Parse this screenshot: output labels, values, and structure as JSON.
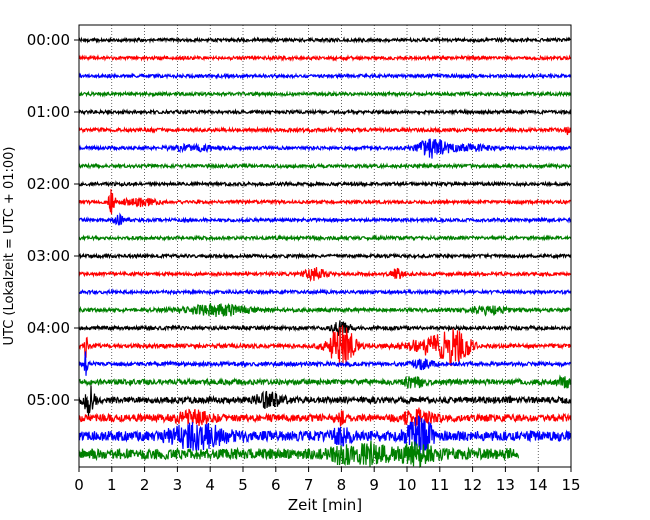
{
  "chart_data": {
    "type": "line",
    "xlabel": "Zeit  [min]",
    "ylabel": "UTC (Lokalzeit = UTC + 01:00)",
    "xlim": [
      0,
      15
    ],
    "x_ticks": [
      "0",
      "1",
      "2",
      "3",
      "4",
      "5",
      "6",
      "7",
      "8",
      "9",
      "10",
      "11",
      "12",
      "13",
      "14",
      "15"
    ],
    "y_ticks": [
      "00:00",
      "01:00",
      "02:00",
      "03:00",
      "04:00",
      "05:00"
    ],
    "grid": "vertical dotted",
    "trace_interval_min": 15,
    "trace_colors": [
      "#000000",
      "#ff0000",
      "#0000ff",
      "#008000"
    ],
    "traces": [
      {
        "start": "00:00",
        "end_min": 15,
        "amp": 0.18,
        "events": []
      },
      {
        "start": "00:15",
        "end_min": 15,
        "amp": 0.18,
        "events": []
      },
      {
        "start": "00:30",
        "end_min": 15,
        "amp": 0.18,
        "events": []
      },
      {
        "start": "00:45",
        "end_min": 15,
        "amp": 0.18,
        "events": []
      },
      {
        "start": "01:00",
        "end_min": 15,
        "amp": 0.18,
        "events": []
      },
      {
        "start": "01:15",
        "end_min": 15,
        "amp": 0.2,
        "events": [
          {
            "t": 14.9,
            "w": 0.05,
            "a": 0.6
          }
        ]
      },
      {
        "start": "01:30",
        "end_min": 15,
        "amp": 0.18,
        "events": [
          {
            "t": 3.5,
            "w": 0.7,
            "a": 0.3
          },
          {
            "t": 10.8,
            "w": 0.5,
            "a": 1.0
          },
          {
            "t": 12,
            "w": 0.6,
            "a": 0.3
          }
        ]
      },
      {
        "start": "01:45",
        "end_min": 15,
        "amp": 0.18,
        "events": []
      },
      {
        "start": "02:00",
        "end_min": 15,
        "amp": 0.18,
        "events": []
      },
      {
        "start": "02:15",
        "end_min": 15,
        "amp": 0.18,
        "events": [
          {
            "t": 1.0,
            "w": 0.1,
            "a": 1.3
          },
          {
            "t": 1.8,
            "w": 0.5,
            "a": 0.4
          }
        ]
      },
      {
        "start": "02:30",
        "end_min": 15,
        "amp": 0.18,
        "events": [
          {
            "t": 1.2,
            "w": 0.15,
            "a": 0.5
          }
        ]
      },
      {
        "start": "02:45",
        "end_min": 15,
        "amp": 0.18,
        "events": []
      },
      {
        "start": "03:00",
        "end_min": 15,
        "amp": 0.18,
        "events": []
      },
      {
        "start": "03:15",
        "end_min": 15,
        "amp": 0.18,
        "events": [
          {
            "t": 7.2,
            "w": 0.3,
            "a": 0.7
          },
          {
            "t": 9.7,
            "w": 0.2,
            "a": 0.5
          }
        ]
      },
      {
        "start": "03:30",
        "end_min": 15,
        "amp": 0.18,
        "events": []
      },
      {
        "start": "03:45",
        "end_min": 15,
        "amp": 0.2,
        "events": [
          {
            "t": 4.2,
            "w": 1.0,
            "a": 0.6
          },
          {
            "t": 12.5,
            "w": 0.5,
            "a": 0.4
          }
        ]
      },
      {
        "start": "04:00",
        "end_min": 15,
        "amp": 0.2,
        "events": [
          {
            "t": 8.0,
            "w": 0.25,
            "a": 0.8
          }
        ]
      },
      {
        "start": "04:15",
        "end_min": 15,
        "amp": 0.22,
        "events": [
          {
            "t": 8.0,
            "w": 0.4,
            "a": 2.2
          },
          {
            "t": 10.8,
            "w": 0.8,
            "a": 0.9
          },
          {
            "t": 11.5,
            "w": 0.4,
            "a": 1.7
          },
          {
            "t": 0.2,
            "w": 0.05,
            "a": 1.5
          }
        ]
      },
      {
        "start": "04:30",
        "end_min": 15,
        "amp": 0.22,
        "events": [
          {
            "t": 0.2,
            "w": 0.05,
            "a": 1.5
          },
          {
            "t": 10.5,
            "w": 0.3,
            "a": 0.5
          }
        ]
      },
      {
        "start": "04:45",
        "end_min": 15,
        "amp": 0.3,
        "events": [
          {
            "t": 10.2,
            "w": 0.3,
            "a": 0.6
          },
          {
            "t": 14.8,
            "w": 0.2,
            "a": 0.5
          }
        ]
      },
      {
        "start": "05:00",
        "end_min": 15,
        "amp": 0.35,
        "events": [
          {
            "t": 0.3,
            "w": 0.15,
            "a": 1.8
          },
          {
            "t": 5.8,
            "w": 0.4,
            "a": 0.7
          }
        ]
      },
      {
        "start": "05:15",
        "end_min": 15,
        "amp": 0.4,
        "events": [
          {
            "t": 3.5,
            "w": 0.5,
            "a": 0.6
          },
          {
            "t": 10.3,
            "w": 0.4,
            "a": 0.8
          },
          {
            "t": 8.0,
            "w": 0.1,
            "a": 0.6
          }
        ]
      },
      {
        "start": "05:30",
        "end_min": 15,
        "amp": 0.55,
        "events": [
          {
            "t": 3.6,
            "w": 0.8,
            "a": 1.2
          },
          {
            "t": 10.4,
            "w": 0.4,
            "a": 1.8
          },
          {
            "t": 8.0,
            "w": 0.3,
            "a": 0.6
          }
        ]
      },
      {
        "start": "05:45",
        "end_min": 13.4,
        "amp": 0.6,
        "events": [
          {
            "t": 8.0,
            "w": 0.3,
            "a": 0.8
          },
          {
            "t": 8.9,
            "w": 0.5,
            "a": 0.9
          },
          {
            "t": 10.3,
            "w": 0.5,
            "a": 0.9
          }
        ]
      }
    ]
  }
}
